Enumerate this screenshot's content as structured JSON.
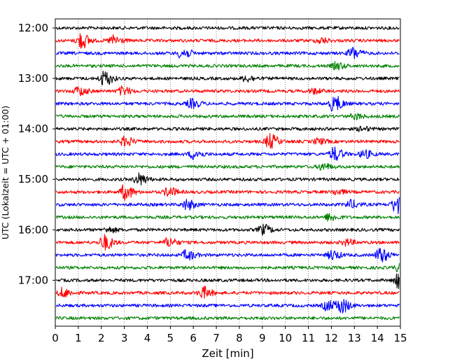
{
  "chart_data": {
    "type": "line",
    "title": "",
    "xlabel": "Zeit  [min]",
    "ylabel": "UTC (Lokalzeit = UTC + 01:00)",
    "xlim": [
      0,
      15
    ],
    "x_ticks": [
      "0",
      "1",
      "2",
      "3",
      "4",
      "5",
      "6",
      "7",
      "8",
      "9",
      "10",
      "11",
      "12",
      "13",
      "14",
      "15"
    ],
    "y_ticks": [
      "12:00",
      "13:00",
      "14:00",
      "15:00",
      "16:00",
      "17:00"
    ],
    "grid": {
      "x": true,
      "style": "dotted"
    },
    "trace_interval_minutes": 15,
    "trace_colors": [
      "#000000",
      "#ff0000",
      "#0000ff",
      "#008000"
    ],
    "series": [
      {
        "start": "12:00",
        "color": "#000000",
        "events": []
      },
      {
        "start": "12:15",
        "color": "#ff0000",
        "events": [
          [
            1.1,
            2.6
          ],
          [
            2.5,
            1.6
          ],
          [
            11.5,
            0.9
          ]
        ]
      },
      {
        "start": "12:30",
        "color": "#0000ff",
        "events": [
          [
            5.5,
            1.8
          ],
          [
            12.9,
            1.9
          ]
        ]
      },
      {
        "start": "12:45",
        "color": "#008000",
        "events": [
          [
            12.2,
            1.1
          ]
        ]
      },
      {
        "start": "13:00",
        "color": "#000000",
        "events": [
          [
            2.1,
            2.4
          ],
          [
            8.3,
            1.0
          ]
        ]
      },
      {
        "start": "13:15",
        "color": "#ff0000",
        "events": [
          [
            1.0,
            1.5
          ],
          [
            2.9,
            1.3
          ],
          [
            11.2,
            0.8
          ]
        ]
      },
      {
        "start": "13:30",
        "color": "#0000ff",
        "events": [
          [
            5.9,
            1.4
          ],
          [
            12.1,
            2.6
          ]
        ]
      },
      {
        "start": "13:45",
        "color": "#008000",
        "events": [
          [
            13.0,
            0.9
          ]
        ]
      },
      {
        "start": "14:00",
        "color": "#000000",
        "events": [
          [
            13.3,
            0.7
          ]
        ]
      },
      {
        "start": "14:15",
        "color": "#ff0000",
        "events": [
          [
            3.0,
            1.5
          ],
          [
            9.3,
            2.4
          ],
          [
            11.4,
            0.9
          ]
        ]
      },
      {
        "start": "14:30",
        "color": "#0000ff",
        "events": [
          [
            6.0,
            1.5
          ],
          [
            12.1,
            2.2
          ],
          [
            13.4,
            1.3
          ]
        ]
      },
      {
        "start": "14:45",
        "color": "#008000",
        "events": [
          [
            11.6,
            1.1
          ]
        ]
      },
      {
        "start": "15:00",
        "color": "#000000",
        "events": [
          [
            3.6,
            1.9
          ]
        ]
      },
      {
        "start": "15:15",
        "color": "#ff0000",
        "events": [
          [
            3.0,
            2.4
          ],
          [
            4.9,
            1.5
          ],
          [
            12.2,
            0.8
          ]
        ]
      },
      {
        "start": "15:30",
        "color": "#0000ff",
        "events": [
          [
            5.7,
            1.6
          ],
          [
            12.8,
            1.3
          ],
          [
            14.8,
            2.9
          ]
        ]
      },
      {
        "start": "15:45",
        "color": "#008000",
        "events": [
          [
            11.9,
            1.2
          ]
        ]
      },
      {
        "start": "16:00",
        "color": "#000000",
        "events": [
          [
            2.3,
            0.8
          ],
          [
            9.0,
            1.6
          ]
        ]
      },
      {
        "start": "16:15",
        "color": "#ff0000",
        "events": [
          [
            2.1,
            2.5
          ],
          [
            4.9,
            1.5
          ],
          [
            12.6,
            1.0
          ]
        ]
      },
      {
        "start": "16:30",
        "color": "#0000ff",
        "events": [
          [
            5.7,
            1.6
          ],
          [
            12.0,
            1.5
          ],
          [
            14.1,
            2.4
          ]
        ]
      },
      {
        "start": "16:45",
        "color": "#008000",
        "events": [
          [
            14.9,
            1.0
          ]
        ]
      },
      {
        "start": "17:00",
        "color": "#000000",
        "events": [
          [
            14.9,
            2.4
          ]
        ]
      },
      {
        "start": "17:15",
        "color": "#ff0000",
        "events": [
          [
            0.3,
            1.5
          ],
          [
            6.4,
            1.9
          ]
        ]
      },
      {
        "start": "17:30",
        "color": "#0000ff",
        "events": [
          [
            11.8,
            1.6
          ],
          [
            12.4,
            2.4
          ]
        ]
      },
      {
        "start": "17:45",
        "color": "#008000",
        "events": []
      }
    ]
  }
}
